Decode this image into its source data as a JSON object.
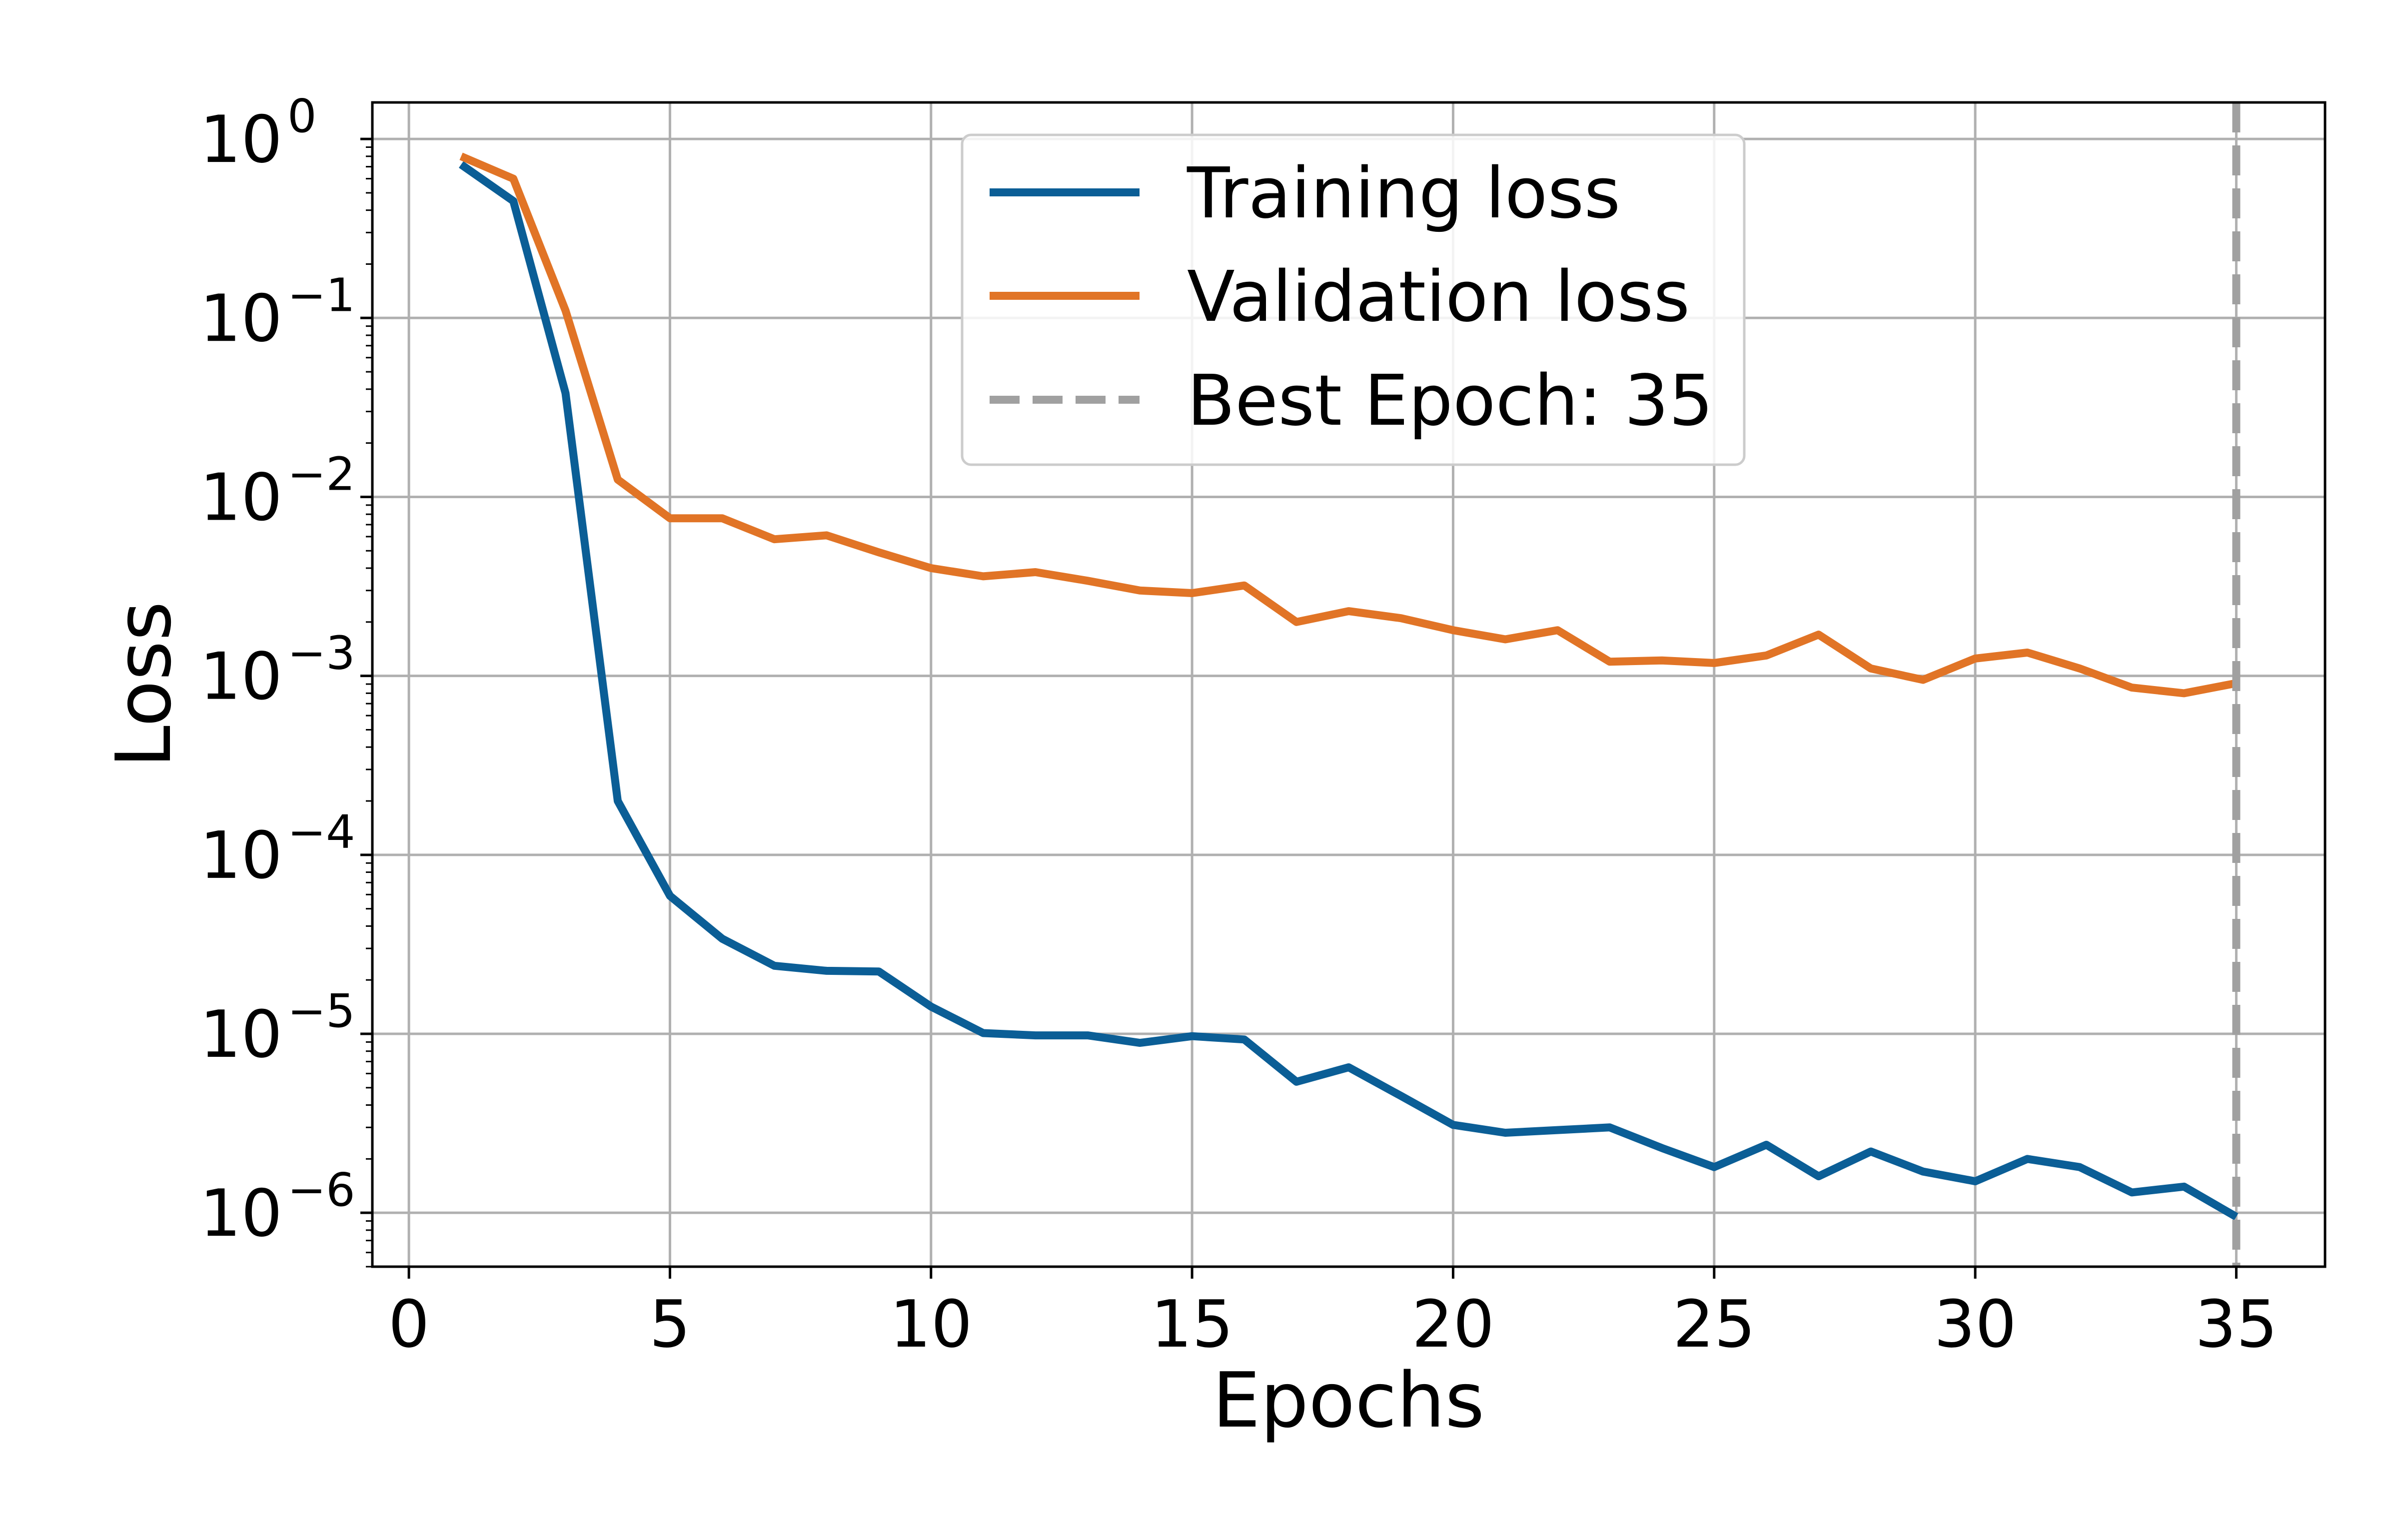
{
  "chart_data": {
    "type": "line",
    "title": "",
    "xlabel": "Epochs",
    "ylabel": "Loss",
    "y_scale": "log",
    "xlim": [
      -0.7,
      36.7
    ],
    "ylim": [
      5e-07,
      1.6
    ],
    "grid": true,
    "x_ticks": [
      0,
      5,
      10,
      15,
      20,
      25,
      30,
      35
    ],
    "y_ticks": [
      {
        "value": 1,
        "base": "10",
        "exponent": "0"
      },
      {
        "value": 0.1,
        "base": "10",
        "exponent": "−1"
      },
      {
        "value": 0.01,
        "base": "10",
        "exponent": "−2"
      },
      {
        "value": 0.001,
        "base": "10",
        "exponent": "−3"
      },
      {
        "value": 0.0001,
        "base": "10",
        "exponent": "−4"
      },
      {
        "value": 1e-05,
        "base": "10",
        "exponent": "−5"
      },
      {
        "value": 1e-06,
        "base": "10",
        "exponent": "−6"
      }
    ],
    "x": [
      1,
      2,
      3,
      4,
      5,
      6,
      7,
      8,
      9,
      10,
      11,
      12,
      13,
      14,
      15,
      16,
      17,
      18,
      19,
      20,
      21,
      22,
      23,
      24,
      25,
      26,
      27,
      28,
      29,
      30,
      31,
      32,
      33,
      34,
      35
    ],
    "series": [
      {
        "name": "Training loss",
        "color": "#0b5e96",
        "values": [
          0.72,
          0.45,
          0.038,
          0.0002,
          5.9e-05,
          3.4e-05,
          2.4e-05,
          2.25e-05,
          2.23e-05,
          1.42e-05,
          1.01e-05,
          9.8e-06,
          9.8e-06,
          8.9e-06,
          9.7e-06,
          9.3e-06,
          5.4e-06,
          6.5e-06,
          4.5e-06,
          3.1e-06,
          2.8e-06,
          2.9e-06,
          3e-06,
          2.3e-06,
          1.8e-06,
          2.4e-06,
          1.6e-06,
          2.2e-06,
          1.7e-06,
          1.5e-06,
          2e-06,
          1.8e-06,
          1.3e-06,
          1.4e-06,
          9.5e-07
        ]
      },
      {
        "name": "Validation loss",
        "color": "#e17426",
        "values": [
          0.8,
          0.6,
          0.11,
          0.0125,
          0.0076,
          0.0076,
          0.0058,
          0.0061,
          0.0049,
          0.004,
          0.0036,
          0.0038,
          0.0034,
          0.003,
          0.0029,
          0.0032,
          0.002,
          0.0023,
          0.0021,
          0.0018,
          0.0016,
          0.0018,
          0.0012,
          0.00122,
          0.00118,
          0.0013,
          0.0017,
          0.0011,
          0.00095,
          0.00125,
          0.00135,
          0.0011,
          0.00086,
          0.0008,
          0.00091
        ]
      }
    ],
    "vline": {
      "name": "Best Epoch: 35",
      "x": 35,
      "color": "#a0a0a0",
      "style": "dashed"
    },
    "legend": {
      "location": "upper center",
      "entries": [
        "Training loss",
        "Validation loss",
        "Best Epoch: 35"
      ]
    }
  }
}
